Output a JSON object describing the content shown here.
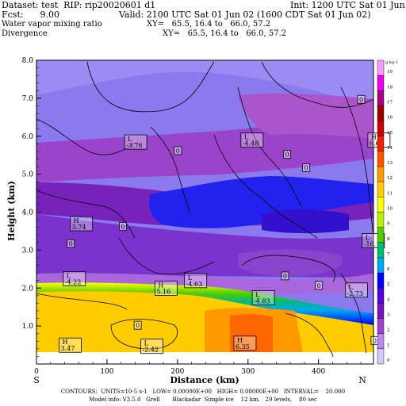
{
  "header": {
    "dataset": "Dataset: test  RIP: rip20020601 d1",
    "init": "Init: 1200 UTC Sat 01 Jun 02",
    "fcst": "Fcst:      9.00",
    "valid": "Valid: 2100 UTC Sat 01 Jun 02 (1600 CDT Sat 01 Jun 02)",
    "field1": "Water vapor mixing ratio",
    "xy1": "XY=   65.5, 16.4 to   66.0, 57.2",
    "field2": "Divergence",
    "xy2": "XY=   65.5, 16.4 to   66.0, 57.2"
  },
  "chart_data": {
    "type": "heatmap",
    "ylabel": "Height (km)",
    "xlabel": "Distance (km)",
    "x_ticks": [
      "0",
      "100",
      "200",
      "300",
      "400"
    ],
    "x_tick_values": [
      0,
      100,
      200,
      300,
      400
    ],
    "y_ticks": [
      "1.0",
      "2.0",
      "3.0",
      "4.0",
      "5.0",
      "6.0",
      "7.0",
      "8.0"
    ],
    "y_tick_values": [
      1,
      2,
      3,
      4,
      5,
      6,
      7,
      8
    ],
    "xlim": [
      0,
      478
    ],
    "ylim": [
      0,
      8
    ],
    "left_end": "S",
    "right_end": "N",
    "colorbar": {
      "unit": "g kg-1",
      "levels": [
        "19",
        "18",
        "17",
        "16",
        "15",
        "14",
        "13",
        "12",
        "11",
        "10",
        "9",
        "8",
        "7",
        "6",
        "5",
        "4",
        "3",
        "2",
        "1",
        "0"
      ],
      "colors": [
        "#ff99ff",
        "#ee00ee",
        "#aa0088",
        "#990000",
        "#cc0000",
        "#ee2200",
        "#ff5500",
        "#ff9900",
        "#ffcc00",
        "#ffff00",
        "#bbee00",
        "#55cc00",
        "#00bb77",
        "#00aaee",
        "#0000ff",
        "#5500dd",
        "#7711bb",
        "#9944cc",
        "#bb88ee",
        "#ccccff"
      ]
    },
    "labels": [
      {
        "kind": "L",
        "value": "-3.76",
        "x": 125,
        "y": 5.7
      },
      {
        "kind": "L",
        "value": "-4.48",
        "x": 290,
        "y": 5.75
      },
      {
        "kind": "H",
        "value": "6.6",
        "x": 470,
        "y": 5.75
      },
      {
        "kind": "H",
        "value": "3.74",
        "x": 48,
        "y": 3.55
      },
      {
        "kind": "L",
        "value": "-16.",
        "x": 462,
        "y": 3.1
      },
      {
        "kind": "L",
        "value": "-4.22",
        "x": 38,
        "y": 2.1
      },
      {
        "kind": "L",
        "value": "-4.63",
        "x": 210,
        "y": 2.05
      },
      {
        "kind": "H",
        "value": "5.16",
        "x": 168,
        "y": 1.85
      },
      {
        "kind": "L",
        "value": "-4.83",
        "x": 306,
        "y": 1.6
      },
      {
        "kind": "L",
        "value": "-2.73",
        "x": 438,
        "y": 1.8
      },
      {
        "kind": "H",
        "value": "3.47",
        "x": 32,
        "y": 0.35
      },
      {
        "kind": "L",
        "value": "-2.42",
        "x": 148,
        "y": 0.32
      },
      {
        "kind": "H",
        "value": "6.35",
        "x": 280,
        "y": 0.4
      }
    ],
    "zero_labels": [
      {
        "x": 460,
        "y": 6.95
      },
      {
        "x": 200,
        "y": 5.6
      },
      {
        "x": 355,
        "y": 5.5
      },
      {
        "x": 382,
        "y": 5.15
      },
      {
        "x": 122,
        "y": 3.6
      },
      {
        "x": 48,
        "y": 3.15
      },
      {
        "x": 352,
        "y": 2.3
      },
      {
        "x": 400,
        "y": 2.05
      },
      {
        "x": 143,
        "y": 1.0
      },
      {
        "x": 479,
        "y": 0.6
      }
    ]
  },
  "footer": {
    "line1": "CONTOURS:  UNITS=10-5 s-1   LOW= 0.00000E+00   HIGH= 0.00000E+00   INTERVAL=    20.000",
    "line2": "Model info: V3.5.0   Grell       Blackadar  Simple ice    12 km,   29 levels,    80 sec"
  }
}
